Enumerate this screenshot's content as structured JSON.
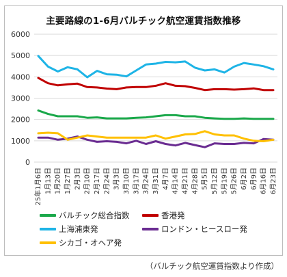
{
  "source_note": "（バルチック航空運賃指数より作成）",
  "chart_data": {
    "type": "line",
    "title": "主要路線の1-6月バルチック航空運賃指数推移",
    "xlabel": "",
    "ylabel": "",
    "ylim": [
      0,
      6000
    ],
    "yticks": [
      0,
      1000,
      2000,
      3000,
      4000,
      5000,
      6000
    ],
    "grid": true,
    "legend_position": "bottom",
    "categories": [
      "25年1月6日",
      "1月13日",
      "1月20日",
      "1月27日",
      "2月3日",
      "2月10日",
      "2月17日",
      "2月24日",
      "3月3日",
      "3月10日",
      "3月17日",
      "3月24日",
      "3月31日",
      "4月7日",
      "4月14日",
      "4月21日",
      "4月28日",
      "5月5日",
      "5月12日",
      "5月19日",
      "5月26日",
      "6月2日",
      "6月9日",
      "6月16日",
      "6月23日"
    ],
    "x_tick_labels": [
      "25年1月6日",
      "1月13日",
      "1月20日",
      "1月27日",
      "2月3日",
      "2月10日",
      "2月17日",
      "2月24日",
      "3月3日",
      "3月10日",
      "3月17日",
      "3月24日",
      "3月31日",
      "4月7日",
      "4月14日",
      "4月21日",
      "4月28日",
      "5月5日",
      "5月12日",
      "5月19日",
      "5月26日",
      "6月2日",
      "6月9日",
      "6月16日",
      "6月23日"
    ],
    "series": [
      {
        "name": "バルチック総合指数",
        "color": "#1aa84a",
        "values": [
          2420,
          2260,
          2150,
          2150,
          2150,
          2080,
          2100,
          2050,
          2050,
          2050,
          2080,
          2100,
          2150,
          2200,
          2200,
          2150,
          2150,
          2080,
          2050,
          2030,
          2030,
          2050,
          2030,
          2030,
          2030
        ]
      },
      {
        "name": "香港発",
        "color": "#c00000",
        "values": [
          3950,
          3700,
          3600,
          3650,
          3680,
          3520,
          3500,
          3450,
          3420,
          3500,
          3520,
          3520,
          3580,
          3700,
          3580,
          3560,
          3480,
          3380,
          3420,
          3420,
          3400,
          3420,
          3460,
          3380,
          3380
        ]
      },
      {
        "name": "上海浦東発",
        "color": "#1eb4e6",
        "values": [
          4980,
          4480,
          4250,
          4450,
          4350,
          3980,
          4280,
          4120,
          4100,
          4020,
          4300,
          4580,
          4620,
          4700,
          4680,
          4720,
          4430,
          4300,
          4350,
          4200,
          4480,
          4650,
          4580,
          4500,
          4350
        ]
      },
      {
        "name": "ロンドン・ヒースロー発",
        "color": "#6a2c91",
        "values": [
          1150,
          1150,
          1050,
          1100,
          1200,
          1050,
          950,
          980,
          950,
          880,
          1000,
          850,
          980,
          850,
          780,
          900,
          800,
          700,
          880,
          850,
          850,
          900,
          880,
          1080,
          1050
        ]
      },
      {
        "name": "シカゴ・オヘア発",
        "color": "#ffc000",
        "values": [
          1350,
          1380,
          1350,
          1050,
          1150,
          1250,
          1200,
          1150,
          1150,
          1150,
          1150,
          1150,
          1250,
          1100,
          1200,
          1300,
          1320,
          1450,
          1300,
          1250,
          1250,
          1100,
          1000,
          980,
          1050
        ]
      }
    ]
  }
}
